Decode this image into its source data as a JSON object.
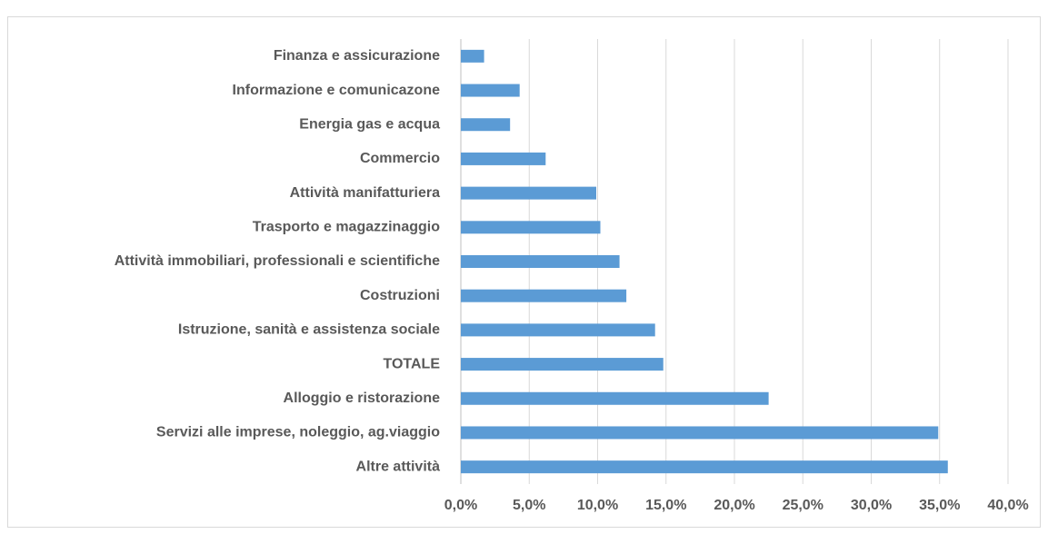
{
  "chart_data": {
    "type": "hbar",
    "categories": [
      "Finanza e assicurazione",
      "Informazione e comunicazone",
      "Energia gas e acqua",
      "Commercio",
      "Attività manifatturiera",
      "Trasporto e magazzinaggio",
      "Attività immobiliari, professionali e scientifiche",
      "Costruzioni",
      "Istruzione, sanità e assistenza sociale",
      "TOTALE",
      "Alloggio e ristorazione",
      "Servizi alle imprese, noleggio, ag.viaggio",
      "Altre attività"
    ],
    "values": [
      1.7,
      4.3,
      3.6,
      6.2,
      9.9,
      10.2,
      11.6,
      12.1,
      14.2,
      14.8,
      22.5,
      34.9,
      35.6
    ],
    "color": "#5b9bd5",
    "xlim": [
      0,
      40
    ],
    "xticks": [
      {
        "value": 0,
        "label": "0,0%"
      },
      {
        "value": 5,
        "label": "5,0%"
      },
      {
        "value": 10,
        "label": "10,0%"
      },
      {
        "value": 15,
        "label": "15,0%"
      },
      {
        "value": 20,
        "label": "20,0%"
      },
      {
        "value": 25,
        "label": "25,0%"
      },
      {
        "value": 30,
        "label": "30,0%"
      },
      {
        "value": 35,
        "label": "35,0%"
      },
      {
        "value": 40,
        "label": "40,0%"
      }
    ],
    "grid": true
  }
}
